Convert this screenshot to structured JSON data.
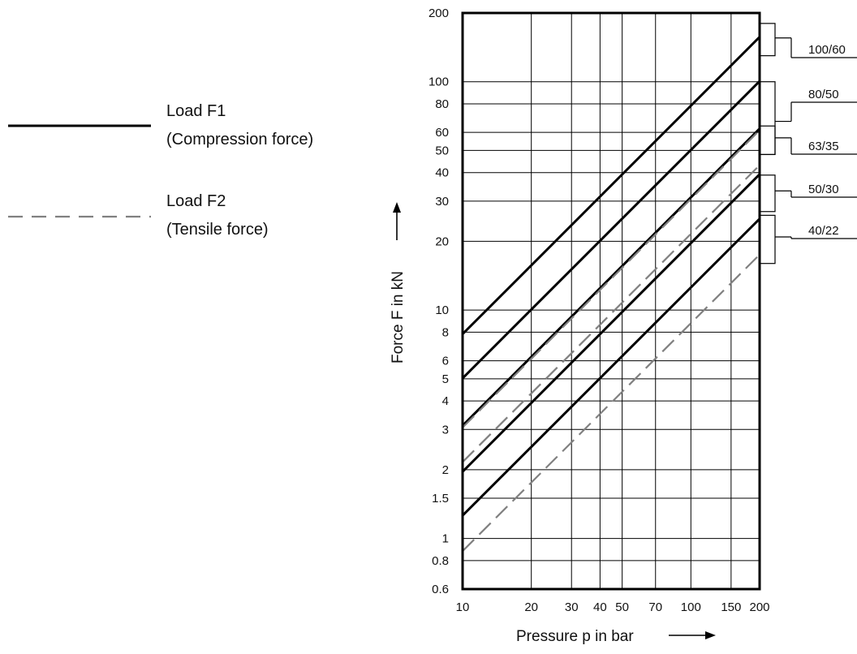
{
  "legend": [
    {
      "line1": "Load F1",
      "line2": "(Compression force)",
      "style": "solid",
      "color": "#000000"
    },
    {
      "line1": "Load F2",
      "line2": "(Tensile force)",
      "style": "dashed",
      "color": "#808080"
    }
  ],
  "chart_data": {
    "type": "line",
    "title": "",
    "xlabel": "Pressure p in bar",
    "ylabel": "Force F in kN",
    "xscale": "log",
    "yscale": "log",
    "xlim": [
      10,
      200
    ],
    "ylim": [
      0.6,
      200
    ],
    "grid": true,
    "xticks": [
      10,
      20,
      30,
      40,
      50,
      70,
      100,
      150,
      200
    ],
    "xtick_labels": [
      "10",
      "20",
      "30",
      "40",
      "50",
      "70",
      "100",
      "150",
      "200"
    ],
    "yticks": [
      0.6,
      0.8,
      1,
      1.5,
      2,
      3,
      4,
      5,
      6,
      8,
      10,
      20,
      30,
      40,
      50,
      60,
      80,
      100,
      200
    ],
    "ytick_labels": [
      "0.6",
      "0.8",
      "1",
      "1.5",
      "2",
      "3",
      "4",
      "5",
      "6",
      "8",
      "10",
      "20",
      "30",
      "40",
      "50",
      "60",
      "80",
      "100",
      "200"
    ],
    "series": [
      {
        "name": "Load F1",
        "size": "100/60",
        "style": "solid",
        "color": "#000000",
        "x": [
          10,
          200
        ],
        "y": [
          7.85,
          157
        ]
      },
      {
        "name": "Load F1",
        "size": "80/50",
        "style": "solid",
        "color": "#000000",
        "x": [
          10,
          200
        ],
        "y": [
          5.03,
          100.5
        ]
      },
      {
        "name": "Load F1",
        "size": "63/35",
        "style": "solid",
        "color": "#000000",
        "x": [
          10,
          200
        ],
        "y": [
          3.12,
          62.3
        ]
      },
      {
        "name": "Load F1",
        "size": "50/30",
        "style": "solid",
        "color": "#000000",
        "x": [
          10,
          200
        ],
        "y": [
          1.96,
          39.3
        ]
      },
      {
        "name": "Load F1",
        "size": "40/22",
        "style": "solid",
        "color": "#000000",
        "x": [
          10,
          200
        ],
        "y": [
          1.26,
          25.1
        ]
      },
      {
        "name": "Load F2",
        "size": "80/50",
        "style": "dashed",
        "color": "#808080",
        "x": [
          10,
          200
        ],
        "y": [
          3.06,
          61.3
        ]
      },
      {
        "name": "Load F2",
        "size": "63/35",
        "style": "dashed",
        "color": "#808080",
        "x": [
          10,
          200
        ],
        "y": [
          2.16,
          43.1
        ]
      },
      {
        "name": "Load F2",
        "size": "40/22",
        "style": "dashed",
        "color": "#808080",
        "x": [
          10,
          200
        ],
        "y": [
          0.88,
          17.5
        ]
      }
    ],
    "size_labels": [
      {
        "text": "100/60",
        "y_range": [
          130,
          180
        ]
      },
      {
        "text": "80/50",
        "y_range": [
          48,
          100
        ]
      },
      {
        "text": "63/35",
        "y_range": [
          48,
          64
        ]
      },
      {
        "text": "50/30",
        "y_range": [
          27,
          39
        ]
      },
      {
        "text": "40/22",
        "y_range": [
          16,
          26
        ]
      }
    ]
  }
}
